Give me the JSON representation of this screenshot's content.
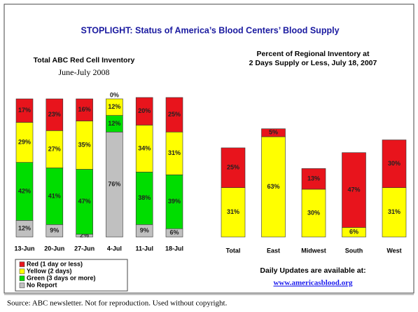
{
  "title": "STOPLIGHT: Status of America’s Blood Centers’ Blood Supply",
  "updates_note": "Daily Updates are available at:",
  "link": "www.americasblood.org",
  "source": "Source: ABC newsletter.  Not for reproduction. Used without copyright.",
  "chart_data": [
    {
      "type": "stacked_bar",
      "title": "Total ABC Red Cell Inventory",
      "subtitle": "June-July 2008",
      "categories": [
        "13-Jun",
        "20-Jun",
        "27-Jun",
        "4-Jul",
        "11-Jul",
        "18-Jul"
      ],
      "series": [
        {
          "name": "No Report",
          "color": "#c0c0c0",
          "values": [
            12,
            9,
            2,
            76,
            9,
            6
          ],
          "value_labels": [
            "12%",
            "9%",
            "2%",
            "76%",
            "9%",
            "6%"
          ]
        },
        {
          "name": "Green (3 days or more)",
          "color": "#00dd00",
          "values": [
            42,
            41,
            47,
            12,
            38,
            39
          ],
          "value_labels": [
            "42%",
            "41%",
            "47%",
            "12%",
            "38%",
            "39%"
          ]
        },
        {
          "name": "Yellow (2 days)",
          "color": "#ffff00",
          "values": [
            29,
            27,
            35,
            12,
            34,
            31
          ],
          "value_labels": [
            "29%",
            "27%",
            "35%",
            "12%",
            "34%",
            "31%"
          ]
        },
        {
          "name": "Red (1 day or less)",
          "color": "#e8141c",
          "values": [
            17,
            23,
            16,
            0,
            20,
            25
          ],
          "value_labels": [
            "17%",
            "23%",
            "16%",
            "0%",
            "20%",
            "25%"
          ]
        }
      ],
      "legend": "bottom-left"
    },
    {
      "type": "stacked_bar",
      "title": [
        "Percent of Regional Inventory at",
        "2 Days Supply or Less, July 18, 2007"
      ],
      "categories": [
        "Total",
        "East",
        "Midwest",
        "South",
        "West"
      ],
      "series": [
        {
          "color": "#ffff00",
          "values": [
            31,
            63,
            30,
            6,
            31
          ],
          "value_labels": [
            "31%",
            "63%",
            "30%",
            "6%",
            "31%"
          ]
        },
        {
          "color": "#e8141c",
          "values": [
            25,
            5,
            13,
            47,
            30
          ],
          "value_labels": [
            "25%",
            "5%",
            "13%",
            "47%",
            "30%"
          ]
        }
      ]
    }
  ]
}
